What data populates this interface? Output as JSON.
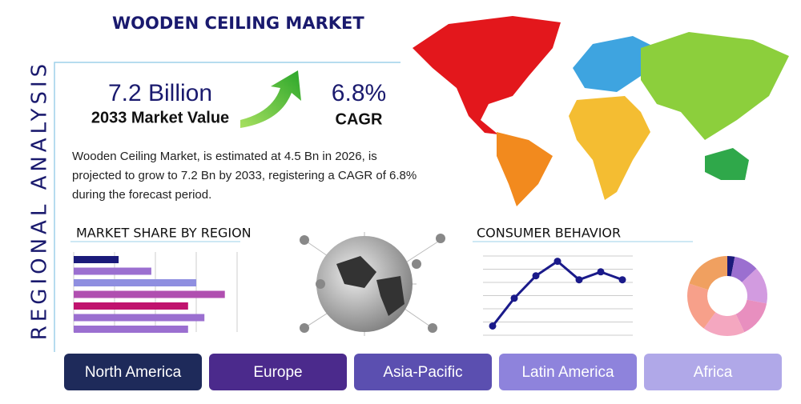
{
  "header": {
    "title": "WOODEN CEILING MARKET",
    "side_title": "REGIONAL ANALYSIS"
  },
  "stats": [
    {
      "value": "7.2 Billion",
      "label": "2033 Market Value"
    },
    {
      "value": "6.8%",
      "label": "CAGR"
    }
  ],
  "description": [
    "Wooden Ceiling Market, is estimated at 4.5 Bn in 2026, is",
    "projected to grow to 7.2 Bn by 2033, registering a CAGR of 6.8%",
    "during the forecast period."
  ],
  "market_share": {
    "type": "bar",
    "title": "MARKET SHARE BY REGION",
    "values": [
      1.1,
      1.9,
      3.0,
      3.7,
      2.8,
      3.2,
      2.8
    ],
    "colors": [
      "#1a1a7a",
      "#9b6fd0",
      "#8f8fe0",
      "#b04fb0",
      "#c0136e",
      "#9b6fd0",
      "#9b6fd0"
    ],
    "xlim": [
      0,
      4
    ],
    "xticks": [
      0,
      1,
      2,
      3,
      4
    ]
  },
  "consumer_behavior": {
    "type": "line",
    "title": "CONSUMER BEHAVIOR",
    "values": [
      0.7,
      2.8,
      4.5,
      5.6,
      4.2,
      4.8,
      4.2
    ],
    "ylim": [
      0,
      6
    ],
    "yticks": [
      0,
      1,
      2,
      3,
      4,
      5,
      6
    ],
    "color": "#1a1a8a"
  },
  "regional_mix": {
    "type": "pie",
    "values": [
      3,
      10,
      15,
      15,
      17,
      20,
      20
    ],
    "colors": [
      "#1a1a7a",
      "#9b6fd0",
      "#d29be0",
      "#e88fbf",
      "#f4a7c0",
      "#f7a08a",
      "#f0a060"
    ]
  },
  "regions": [
    "North America",
    "Europe",
    "Asia-Pacific",
    "Latin America",
    "Africa"
  ]
}
